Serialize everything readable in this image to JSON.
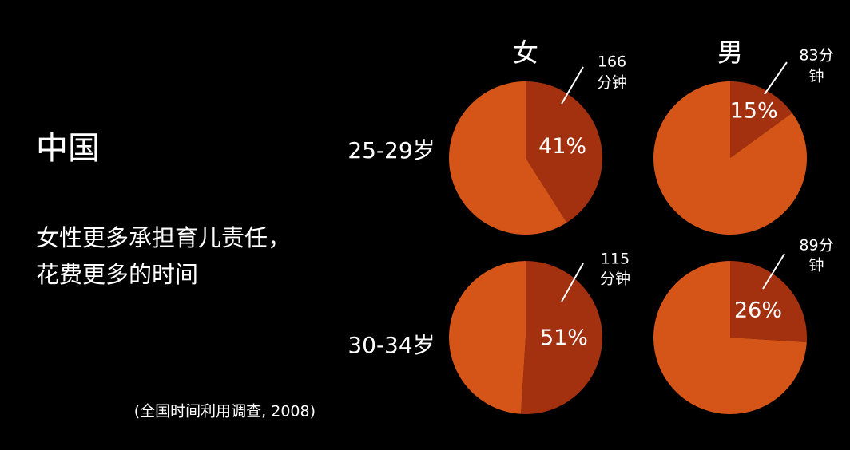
{
  "slide": {
    "title": "中国",
    "body": [
      "女性更多承担育儿责任，",
      "花费更多的时间"
    ],
    "source": "(全国时间利用调查, 2008)",
    "columns": [
      "女",
      "男"
    ],
    "rows": [
      "25-29岁",
      "30-34岁"
    ]
  },
  "chart_data": [
    {
      "type": "pie",
      "values": [
        41,
        59
      ],
      "value_labels": [
        "41%",
        null
      ],
      "colors": [
        "#a3300f",
        "#d55518"
      ],
      "annotation": [
        "166",
        "分钟"
      ]
    },
    {
      "type": "pie",
      "values": [
        15,
        85
      ],
      "value_labels": [
        "15%",
        null
      ],
      "colors": [
        "#a3300f",
        "#d55518"
      ],
      "annotation": [
        "83分",
        "钟"
      ]
    },
    {
      "type": "pie",
      "values": [
        51,
        49
      ],
      "value_labels": [
        "51%",
        null
      ],
      "colors": [
        "#a3300f",
        "#d55518"
      ],
      "annotation": [
        "115",
        "分钟"
      ]
    },
    {
      "type": "pie",
      "values": [
        26,
        74
      ],
      "value_labels": [
        "26%",
        null
      ],
      "colors": [
        "#a3300f",
        "#d55518"
      ],
      "annotation": [
        "89分",
        "钟"
      ]
    }
  ]
}
